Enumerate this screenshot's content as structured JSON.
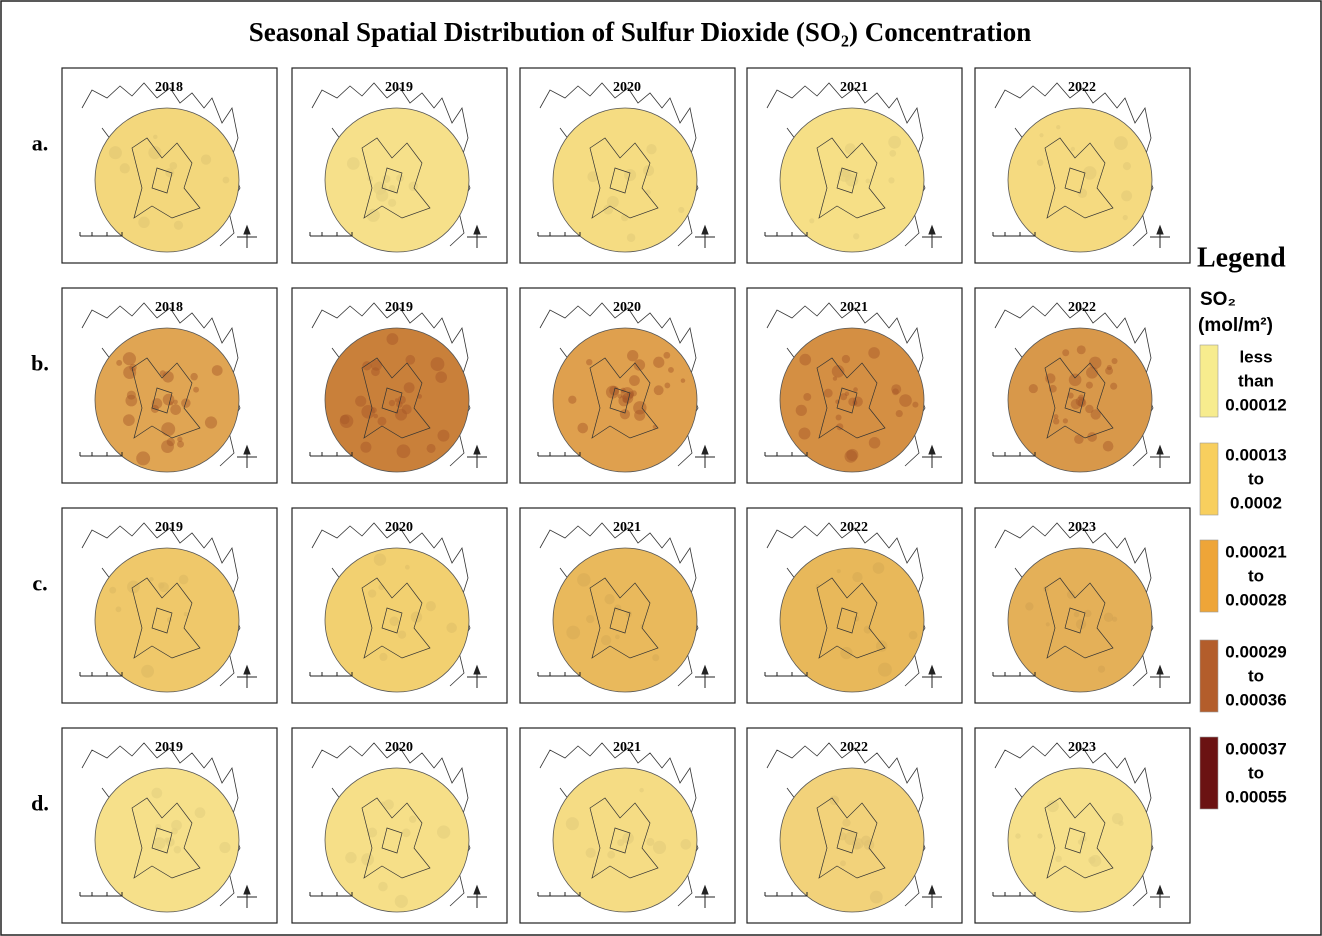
{
  "title": "Seasonal Spatial Distribution of Sulfur Dioxide (SO₂) Concentration",
  "rows": [
    {
      "label": "a.",
      "panels": [
        {
          "year": "2018",
          "color": "#f3d77c"
        },
        {
          "year": "2019",
          "color": "#f6e08a"
        },
        {
          "year": "2020",
          "color": "#f5dc82"
        },
        {
          "year": "2021",
          "color": "#f6df86"
        },
        {
          "year": "2022",
          "color": "#f5da80"
        }
      ]
    },
    {
      "label": "b.",
      "panels": [
        {
          "year": "2018",
          "color": "#e0a553"
        },
        {
          "year": "2019",
          "color": "#c9803a"
        },
        {
          "year": "2020",
          "color": "#dfa04e"
        },
        {
          "year": "2021",
          "color": "#d48f43"
        },
        {
          "year": "2022",
          "color": "#d8984a"
        }
      ]
    },
    {
      "label": "c.",
      "panels": [
        {
          "year": "2019",
          "color": "#efc86a"
        },
        {
          "year": "2020",
          "color": "#f2d070"
        },
        {
          "year": "2021",
          "color": "#e9b95c"
        },
        {
          "year": "2022",
          "color": "#e8b85a"
        },
        {
          "year": "2023",
          "color": "#e4b058"
        }
      ]
    },
    {
      "label": "d.",
      "panels": [
        {
          "year": "2019",
          "color": "#f6e08a"
        },
        {
          "year": "2020",
          "color": "#f6df88"
        },
        {
          "year": "2021",
          "color": "#f5dc84"
        },
        {
          "year": "2022",
          "color": "#f2d27a"
        },
        {
          "year": "2023",
          "color": "#f6e08a"
        }
      ]
    }
  ],
  "legend": {
    "title": "Legend",
    "variable": "SO₂",
    "unit": "(mol/m²)",
    "items": [
      {
        "lines": [
          "less",
          "than",
          "0.00012"
        ],
        "color": "#f7ec8e"
      },
      {
        "lines": [
          "0.00013",
          "to",
          "0.0002"
        ],
        "color": "#f8cf5e"
      },
      {
        "lines": [
          "0.00021",
          "to",
          "0.00028"
        ],
        "color": "#eea538"
      },
      {
        "lines": [
          "0.00029",
          "to",
          "0.00036"
        ],
        "color": "#b35d2b"
      },
      {
        "lines": [
          "0.00037",
          "to",
          "0.00055"
        ],
        "color": "#6b1212"
      }
    ]
  }
}
